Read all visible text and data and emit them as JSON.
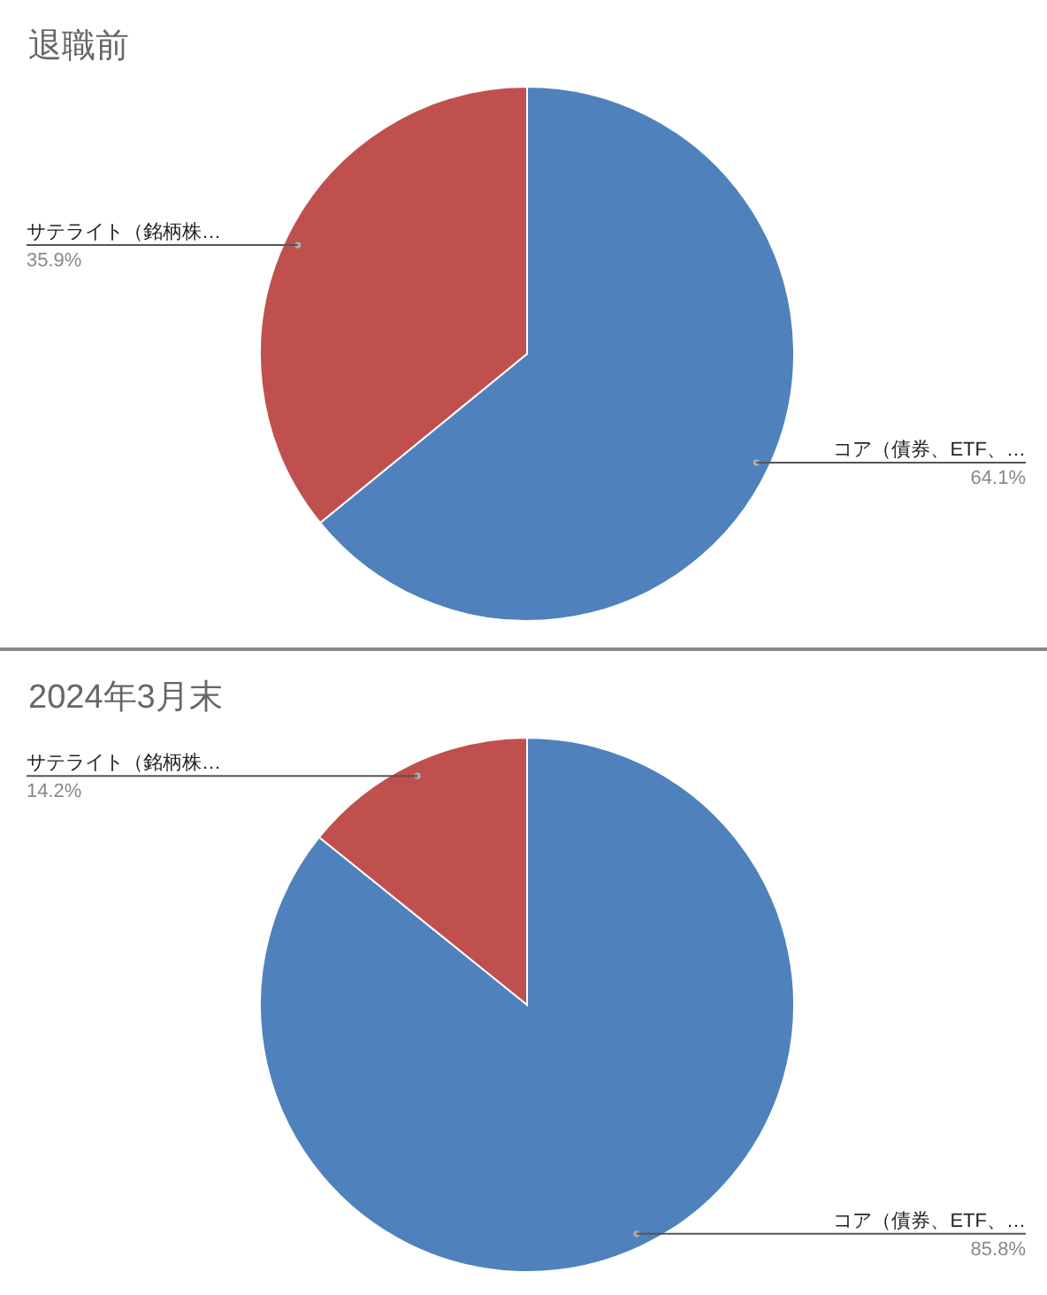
{
  "chart_data": [
    {
      "type": "pie",
      "title": "退職前",
      "categories": [
        "コア（債券、ETF、…",
        "サテライト（銘柄株…"
      ],
      "values": [
        64.1,
        35.9
      ],
      "colors": [
        "#4f81bd",
        "#c0504d"
      ],
      "value_labels": [
        "64.1%",
        "35.9%"
      ]
    },
    {
      "type": "pie",
      "title": "2024年3月末",
      "categories": [
        "コア（債券、ETF、…",
        "サテライト（銘柄株…"
      ],
      "values": [
        85.8,
        14.2
      ],
      "colors": [
        "#4f81bd",
        "#c0504d"
      ],
      "value_labels": [
        "85.8%",
        "14.2%"
      ]
    }
  ]
}
